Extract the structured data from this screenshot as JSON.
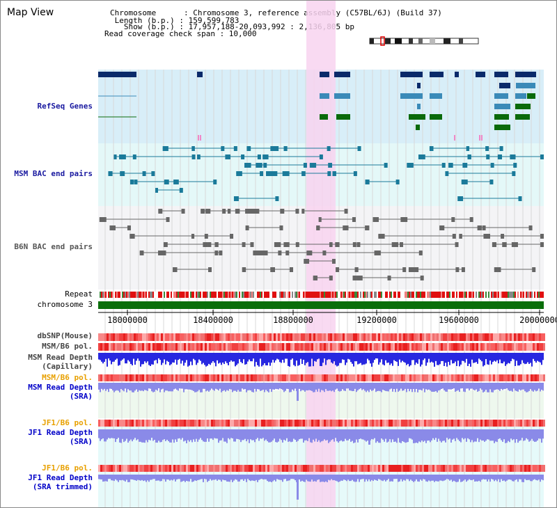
{
  "header": {
    "title": "Map View",
    "info_lines": [
      "Chromosome      : Chromosome 3, reference assembly (C57BL/6J) (Build 37)",
      " Length (b.p.) : 159,599,783",
      "   Show (b.p.) : 17,957,188-20,093,992 : 2,136,805 bp",
      "Read coverage check span : 10,000"
    ]
  },
  "tracks": {
    "refseq": "RefSeq Genes",
    "msm_bac": "MSM BAC end pairs",
    "b6n_bac": "B6N BAC end pairs",
    "repeat": "Repeat",
    "chromosome": "chromosome 3",
    "dbsnp": "dbSNP(Mouse)",
    "msm_b6_pol": "MSM/B6 pol.",
    "msm_depth_cap_1": "MSM Read Depth",
    "msm_depth_cap_2": "(Capillary)",
    "msm_b6_pol_2": "MSM/B6 pol.",
    "msm_depth_sra_1": "MSM Read Depth",
    "msm_depth_sra_2": "(SRA)",
    "jf1_b6_pol": "JF1/B6 pol.",
    "jf1_depth_sra_1": "JF1 Read Depth",
    "jf1_depth_sra_2": "(SRA)",
    "jf1_b6_pol_2": "JF1/B6 pol.",
    "jf1_depth_trim_1": "JF1 Read Depth",
    "jf1_depth_trim_2": "(SRA trimmed)"
  },
  "axis": {
    "ticks": [
      "18000000",
      "18400000",
      "18800000",
      "19200000",
      "19600000",
      "20000000"
    ]
  },
  "colors": {
    "refseq_bg": "#d8eef8",
    "msm_bg": "#e4f8f8",
    "b6n_bg": "#f4f4f6",
    "highlight": "#f8d4f0",
    "chromosome": "#0a6e0a",
    "gene_dark": "#0a2a6a",
    "gene_mid": "#3a8ab8",
    "gene_green": "#0a6a0a",
    "msm_feature": "#1a7a9a",
    "b6n_feature": "#666666",
    "depth_capillary": "#2828e0",
    "depth_sra": "#8a8ae8"
  }
}
